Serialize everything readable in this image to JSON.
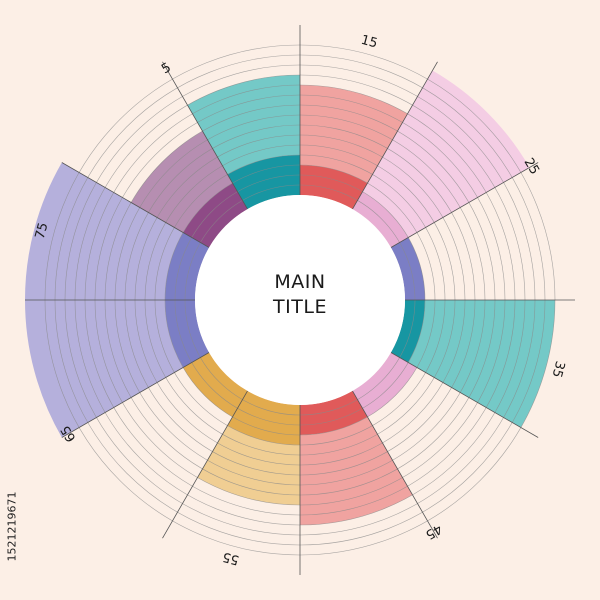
{
  "title_lines": [
    "MAIN",
    "TITLE"
  ],
  "side_credit": "1521219671",
  "chart_data": {
    "type": "radial-bar",
    "title": "MAIN TITLE",
    "angle_labels": [
      "15",
      "25",
      "35",
      "45",
      "55",
      "65",
      "75",
      "5"
    ],
    "sectors": [
      {
        "start_deg": 0,
        "end_deg": 30,
        "outer": 8,
        "inner": 3,
        "color": "#e05a5a",
        "outer_color": "#f0a3a0"
      },
      {
        "start_deg": 30,
        "end_deg": 60,
        "outer": 14,
        "inner": 2,
        "color": "#e8aed3",
        "outer_color": "#f4cde4"
      },
      {
        "start_deg": 60,
        "end_deg": 90,
        "outer": 0,
        "inner": 2,
        "color": "#7b7ec5",
        "outer_color": "#b5b0dc"
      },
      {
        "start_deg": 90,
        "end_deg": 120,
        "outer": 13,
        "inner": 2,
        "color": "#1796a2",
        "outer_color": "#74c9c7"
      },
      {
        "start_deg": 120,
        "end_deg": 150,
        "outer": 0,
        "inner": 3,
        "color": "#e8aed3",
        "outer_color": "#f4cde4"
      },
      {
        "start_deg": 150,
        "end_deg": 180,
        "outer": 9,
        "inner": 3,
        "color": "#e05a5a",
        "outer_color": "#f0a3a0"
      },
      {
        "start_deg": 180,
        "end_deg": 210,
        "outer": 6,
        "inner": 4,
        "color": "#e2ab4d",
        "outer_color": "#f0ce93"
      },
      {
        "start_deg": 210,
        "end_deg": 240,
        "outer": 0,
        "inner": 3,
        "color": "#e2ab4d",
        "outer_color": "#f0ce93"
      },
      {
        "start_deg": 240,
        "end_deg": 270,
        "outer": 14,
        "inner": 3,
        "color": "#7b7ec5",
        "outer_color": "#b5b0dc"
      },
      {
        "start_deg": 270,
        "end_deg": 300,
        "outer": 14,
        "inner": 3,
        "color": "#7b7ec5",
        "outer_color": "#b5b0dc"
      },
      {
        "start_deg": 300,
        "end_deg": 330,
        "outer": 6,
        "inner": 3,
        "color": "#8e4a86",
        "outer_color": "#b68eb1"
      },
      {
        "start_deg": 330,
        "end_deg": 360,
        "outer": 8,
        "inner": 4,
        "color": "#1796a2",
        "outer_color": "#74c9c7"
      }
    ],
    "ring_count": 15,
    "spoke_step_deg": 30,
    "grid": true
  }
}
